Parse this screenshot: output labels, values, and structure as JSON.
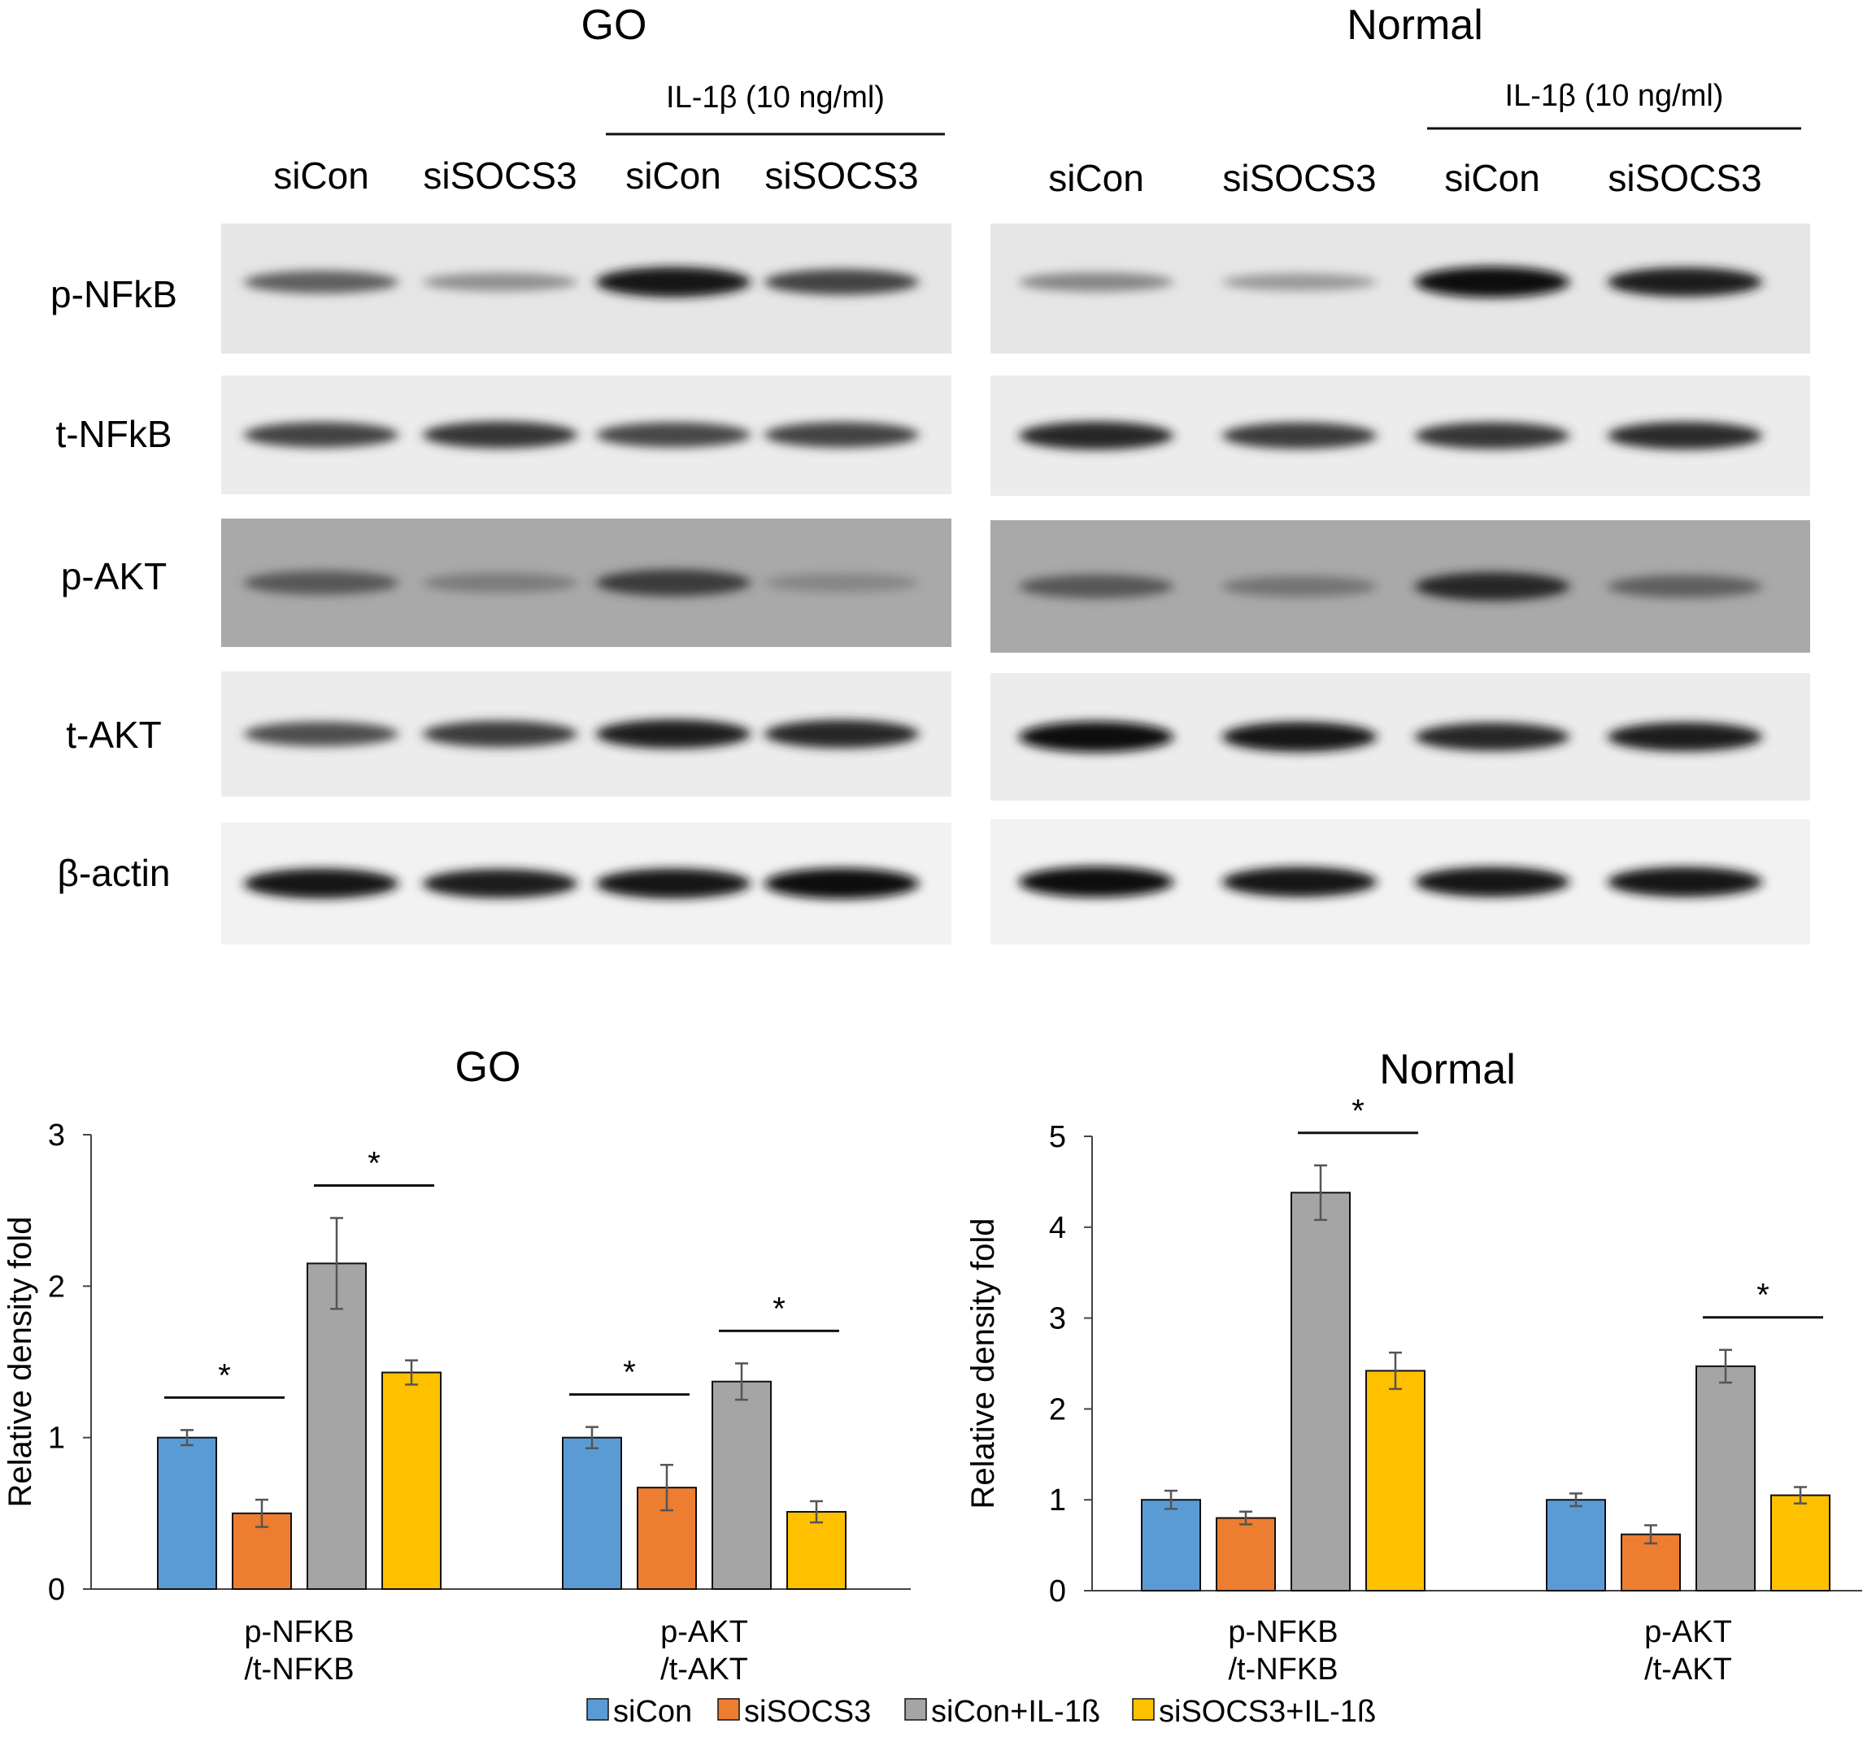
{
  "blot": {
    "panels": [
      {
        "title": "GO",
        "treatment_label": "IL-1β (10 ng/ml)",
        "lanes": [
          "siCon",
          "siSOCS3",
          "siCon",
          "siSOCS3"
        ],
        "rows": [
          {
            "label": "p-NFkB",
            "intensity": [
              0.55,
              0.3,
              0.95,
              0.7
            ],
            "background": "#e6e6e6"
          },
          {
            "label": "t-NFkB",
            "intensity": [
              0.7,
              0.78,
              0.68,
              0.7
            ],
            "background": "#ececec"
          },
          {
            "label": "p-AKT",
            "intensity": [
              0.6,
              0.4,
              0.75,
              0.35
            ],
            "background": "#a9a9a9"
          },
          {
            "label": "t-AKT",
            "intensity": [
              0.65,
              0.75,
              0.9,
              0.85
            ],
            "background": "#ececec"
          },
          {
            "label": "β-actin",
            "intensity": [
              0.95,
              0.9,
              0.95,
              1.0
            ],
            "background": "#f2f2f2"
          }
        ]
      },
      {
        "title": "Normal",
        "treatment_label": "IL-1β (10 ng/ml)",
        "lanes": [
          "siCon",
          "siSOCS3",
          "siCon",
          "siSOCS3"
        ],
        "rows": [
          {
            "label": "p-NFkB",
            "intensity": [
              0.35,
              0.25,
              1.0,
              0.9
            ],
            "background": "#e6e6e6"
          },
          {
            "label": "t-NFkB",
            "intensity": [
              0.85,
              0.75,
              0.78,
              0.82
            ],
            "background": "#ececec"
          },
          {
            "label": "p-AKT",
            "intensity": [
              0.6,
              0.45,
              0.85,
              0.55
            ],
            "background": "#a9a9a9"
          },
          {
            "label": "t-AKT",
            "intensity": [
              1.0,
              0.95,
              0.85,
              0.9
            ],
            "background": "#ececec"
          },
          {
            "label": "β-actin",
            "intensity": [
              1.0,
              0.95,
              0.95,
              0.95
            ],
            "background": "#f2f2f2"
          }
        ]
      }
    ]
  },
  "chart_data": [
    {
      "type": "bar",
      "title": "GO",
      "ylabel": "Relative density fold",
      "xlabel": "",
      "ylim": [
        0,
        3
      ],
      "yticks": [
        0,
        1,
        2,
        3
      ],
      "categories": [
        [
          "p-NFKB",
          "/t-NFKB"
        ],
        [
          "p-AKT",
          "/t-AKT"
        ]
      ],
      "series": [
        {
          "name": "siCon",
          "color": "#5b9bd5",
          "values": [
            1.0,
            1.0
          ],
          "errors": [
            0.05,
            0.07
          ]
        },
        {
          "name": "siSOCS3",
          "color": "#ed7d31",
          "values": [
            0.5,
            0.67
          ],
          "errors": [
            0.09,
            0.15
          ]
        },
        {
          "name": "siCon+IL-1ß",
          "color": "#a5a5a5",
          "values": [
            2.15,
            1.37
          ],
          "errors": [
            0.3,
            0.12
          ]
        },
        {
          "name": "siSOCS3+IL-1ß",
          "color": "#ffc000",
          "values": [
            1.43,
            0.51
          ],
          "errors": [
            0.08,
            0.07
          ]
        }
      ],
      "significance": [
        {
          "category": 0,
          "from": 0,
          "to": 1,
          "label": "*"
        },
        {
          "category": 0,
          "from": 2,
          "to": 3,
          "label": "*"
        },
        {
          "category": 1,
          "from": 0,
          "to": 1,
          "label": "*"
        },
        {
          "category": 1,
          "from": 2,
          "to": 3,
          "label": "*"
        }
      ]
    },
    {
      "type": "bar",
      "title": "Normal",
      "ylabel": "Relative density fold",
      "xlabel": "",
      "ylim": [
        0,
        5
      ],
      "yticks": [
        0,
        1,
        2,
        3,
        4,
        5
      ],
      "categories": [
        [
          "p-NFKB",
          "/t-NFKB"
        ],
        [
          "p-AKT",
          "/t-AKT"
        ]
      ],
      "series": [
        {
          "name": "siCon",
          "color": "#5b9bd5",
          "values": [
            1.0,
            1.0
          ],
          "errors": [
            0.1,
            0.07
          ]
        },
        {
          "name": "siSOCS3",
          "color": "#ed7d31",
          "values": [
            0.8,
            0.62
          ],
          "errors": [
            0.07,
            0.1
          ]
        },
        {
          "name": "siCon+IL-1ß",
          "color": "#a5a5a5",
          "values": [
            4.38,
            2.47
          ],
          "errors": [
            0.3,
            0.18
          ]
        },
        {
          "name": "siSOCS3+IL-1ß",
          "color": "#ffc000",
          "values": [
            2.42,
            1.05
          ],
          "errors": [
            0.2,
            0.09
          ]
        }
      ],
      "significance": [
        {
          "category": 0,
          "from": 2,
          "to": 3,
          "label": "*"
        },
        {
          "category": 1,
          "from": 2,
          "to": 3,
          "label": "*"
        }
      ]
    }
  ],
  "legend": {
    "position": "bottom-center",
    "items": [
      {
        "label": "siCon",
        "color": "#5b9bd5"
      },
      {
        "label": "siSOCS3",
        "color": "#ed7d31"
      },
      {
        "label": "siCon+IL-1ß",
        "color": "#a5a5a5"
      },
      {
        "label": "siSOCS3+IL-1ß",
        "color": "#ffc000"
      }
    ]
  }
}
